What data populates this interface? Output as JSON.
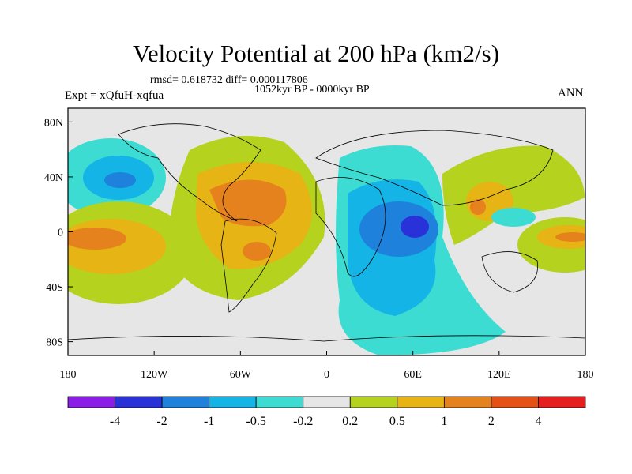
{
  "title": "Velocity Potential at 200 hPa (km2/s)",
  "stats": "rmsd= 0.618732 diff= 0.000117806",
  "period": "1052kyr BP - 0000kyr BP",
  "experiment": "Expt = xQfuH-xqfua",
  "season": "ANN",
  "lat_labels": [
    "80N",
    "40N",
    "0",
    "40S",
    "80S"
  ],
  "lon_labels": [
    "180",
    "120W",
    "60W",
    "0",
    "60E",
    "120E",
    "180"
  ],
  "colorbar": {
    "labels": [
      "-4",
      "-2",
      "-1",
      "-0.5",
      "-0.2",
      "0.2",
      "0.5",
      "1",
      "2",
      "4"
    ],
    "colors": [
      "#8a1ee6",
      "#2832d8",
      "#1e82dc",
      "#14b4e6",
      "#3cdcd2",
      "#e6e6e6",
      "#b4d21e",
      "#e6b414",
      "#e6821e",
      "#e65014",
      "#e61e1e"
    ]
  },
  "chart_data": {
    "type": "contour-map",
    "field": "velocity potential difference at 200 hPa",
    "units": "km2/s",
    "projection": "cylindrical equidistant",
    "lon_range": [
      -180,
      180
    ],
    "lat_range": [
      -90,
      90
    ],
    "levels": [
      -4,
      -2,
      -1,
      -0.5,
      -0.2,
      0.2,
      0.5,
      1,
      2,
      4
    ],
    "features": [
      {
        "name": "indian-ocean-minimum",
        "center_lon": 60,
        "center_lat": -5,
        "min_value": -2
      },
      {
        "name": "atlantic-americas-maximum",
        "center_lon": -55,
        "center_lat": 15,
        "max_value": 2
      },
      {
        "name": "north-pacific-minimum",
        "center_lon": -150,
        "center_lat": 35,
        "min_value": -1
      },
      {
        "name": "central-pacific-maximum",
        "center_lon": -160,
        "center_lat": -3,
        "max_value": 2
      },
      {
        "name": "east-asia-maximum",
        "center_lon": 115,
        "center_lat": 20,
        "max_value": 2
      },
      {
        "name": "west-pacific-maximum",
        "center_lon": 170,
        "center_lat": -2,
        "max_value": 2
      },
      {
        "name": "south-atlantic-maximum",
        "center_lon": -50,
        "center_lat": -15,
        "max_value": 2
      },
      {
        "name": "southern-ocean-minimum",
        "center_lon": 60,
        "center_lat": -55,
        "min_value": -0.5
      }
    ]
  }
}
